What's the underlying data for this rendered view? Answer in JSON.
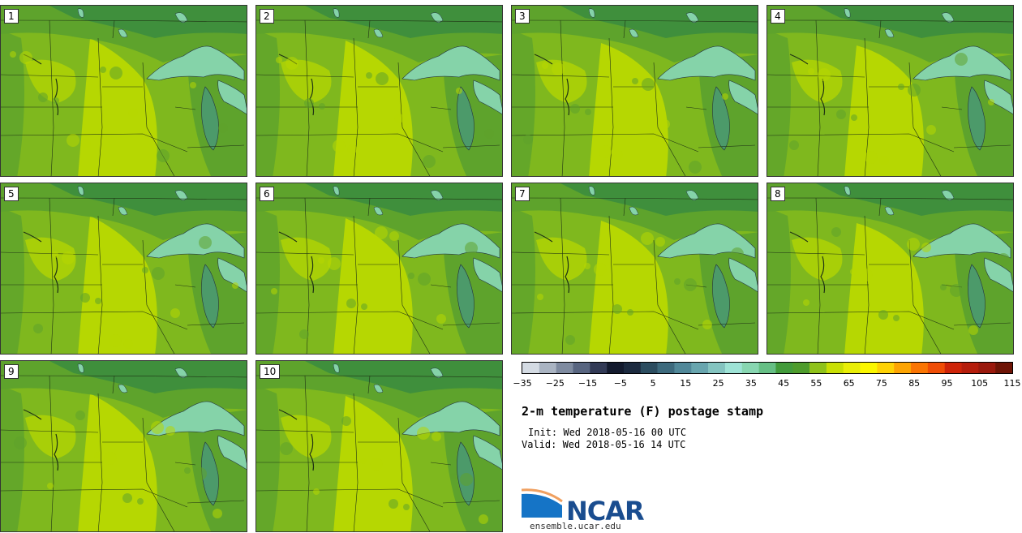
{
  "panels": [
    {
      "label": "1"
    },
    {
      "label": "2"
    },
    {
      "label": "3"
    },
    {
      "label": "4"
    },
    {
      "label": "5"
    },
    {
      "label": "6"
    },
    {
      "label": "7"
    },
    {
      "label": "8"
    },
    {
      "label": "9"
    },
    {
      "label": "10"
    }
  ],
  "colorbar": {
    "colors": [
      "#d4dbe3",
      "#aab4c2",
      "#7f8ba0",
      "#586580",
      "#323a56",
      "#131a2e",
      "#1c2a3f",
      "#2c4d60",
      "#3d6a7d",
      "#518899",
      "#68a5ae",
      "#84c4c0",
      "#9ee3d6",
      "#88d6b1",
      "#66bf85",
      "#429b3b",
      "#4e9c2c",
      "#8fc21a",
      "#c9df04",
      "#e9ee06",
      "#fbf700",
      "#fed205",
      "#fda403",
      "#fa7503",
      "#ef4d06",
      "#ce2409",
      "#b51d0c",
      "#9a190d",
      "#6e1406"
    ],
    "tick_labels": [
      "−35",
      "−25",
      "−15",
      "−5",
      "5",
      "15",
      "25",
      "35",
      "45",
      "55",
      "65",
      "75",
      "85",
      "95",
      "105",
      "115"
    ]
  },
  "title": "2-m temperature (F) postage stamp",
  "init": "Init: Wed 2018-05-16 00 UTC",
  "valid": "Valid: Wed 2018-05-16 14 UTC",
  "logo": {
    "text": "NCAR",
    "site": "ensemble.ucar.edu"
  },
  "map_colors": {
    "base": "#7fb81e",
    "warm": "#b6d702",
    "cool": "#5ea32c",
    "cold": "#3f8f3c",
    "lake": "#85d3a9",
    "lake_dark": "#4c9a6a"
  }
}
